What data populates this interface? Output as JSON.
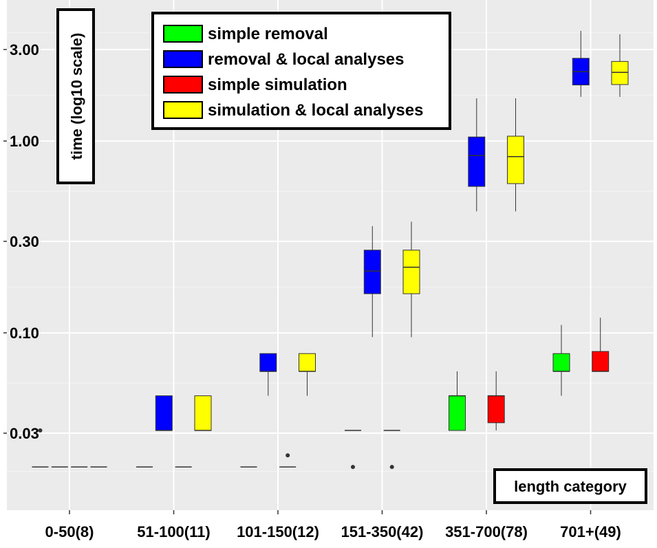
{
  "chart_data": {
    "type": "boxplot",
    "title": "",
    "xlabel": "length category",
    "ylabel": "time (log10 scale)",
    "y_scale": "log10",
    "ylim": [
      0.012,
      4.5
    ],
    "y_ticks": [
      0.03,
      0.1,
      0.3,
      1.0,
      3.0
    ],
    "y_tick_labels": [
      "0.03",
      "0.10",
      "0.30",
      "1.00",
      "3.00"
    ],
    "categories": [
      "0-50(8)",
      "51-100(11)",
      "101-150(12)",
      "151-350(42)",
      "351-700(78)",
      "701+(49)"
    ],
    "legend_position": "top-center",
    "series": [
      {
        "name": "simple removal",
        "color": "#00ff00",
        "boxes": [
          {
            "min": 0.02,
            "q1": 0.02,
            "median": 0.02,
            "q3": 0.02,
            "max": 0.02,
            "outliers": [
              0.031
            ]
          },
          {
            "min": 0.02,
            "q1": 0.02,
            "median": 0.02,
            "q3": 0.02,
            "max": 0.02,
            "outliers": []
          },
          {
            "min": 0.02,
            "q1": 0.02,
            "median": 0.02,
            "q3": 0.02,
            "max": 0.02,
            "outliers": []
          },
          {
            "min": 0.031,
            "q1": 0.031,
            "median": 0.031,
            "q3": 0.031,
            "max": 0.031,
            "outliers": [
              0.02
            ]
          },
          {
            "min": 0.031,
            "q1": 0.031,
            "median": 0.047,
            "q3": 0.047,
            "max": 0.063,
            "outliers": []
          },
          {
            "min": 0.047,
            "q1": 0.063,
            "median": 0.063,
            "q3": 0.078,
            "max": 0.11,
            "outliers": []
          }
        ]
      },
      {
        "name": "removal & local analyses",
        "color": "#0000ff",
        "boxes": [
          {
            "min": 0.02,
            "q1": 0.02,
            "median": 0.02,
            "q3": 0.02,
            "max": 0.02,
            "outliers": []
          },
          {
            "min": 0.031,
            "q1": 0.031,
            "median": 0.031,
            "q3": 0.047,
            "max": 0.047,
            "outliers": []
          },
          {
            "min": 0.047,
            "q1": 0.063,
            "median": 0.063,
            "q3": 0.078,
            "max": 0.078,
            "outliers": []
          },
          {
            "min": 0.095,
            "q1": 0.16,
            "median": 0.21,
            "q3": 0.27,
            "max": 0.36,
            "outliers": []
          },
          {
            "min": 0.43,
            "q1": 0.58,
            "median": 0.84,
            "q3": 1.05,
            "max": 1.67,
            "outliers": []
          },
          {
            "min": 1.7,
            "q1": 1.96,
            "median": 2.3,
            "q3": 2.7,
            "max": 3.75,
            "outliers": []
          }
        ]
      },
      {
        "name": "simple simulation",
        "color": "#ff0000",
        "boxes": [
          {
            "min": 0.02,
            "q1": 0.02,
            "median": 0.02,
            "q3": 0.02,
            "max": 0.02,
            "outliers": []
          },
          {
            "min": 0.02,
            "q1": 0.02,
            "median": 0.02,
            "q3": 0.02,
            "max": 0.02,
            "outliers": []
          },
          {
            "min": 0.02,
            "q1": 0.02,
            "median": 0.02,
            "q3": 0.02,
            "max": 0.02,
            "outliers": [
              0.023
            ]
          },
          {
            "min": 0.031,
            "q1": 0.031,
            "median": 0.031,
            "q3": 0.031,
            "max": 0.031,
            "outliers": [
              0.02
            ]
          },
          {
            "min": 0.031,
            "q1": 0.034,
            "median": 0.047,
            "q3": 0.047,
            "max": 0.063,
            "outliers": []
          },
          {
            "min": 0.063,
            "q1": 0.063,
            "median": 0.063,
            "q3": 0.08,
            "max": 0.12,
            "outliers": []
          }
        ]
      },
      {
        "name": "simulation & local analyses",
        "color": "#ffff00",
        "boxes": [
          {
            "min": 0.02,
            "q1": 0.02,
            "median": 0.02,
            "q3": 0.02,
            "max": 0.02,
            "outliers": []
          },
          {
            "min": 0.031,
            "q1": 0.031,
            "median": 0.031,
            "q3": 0.047,
            "max": 0.047,
            "outliers": []
          },
          {
            "min": 0.047,
            "q1": 0.063,
            "median": 0.063,
            "q3": 0.078,
            "max": 0.078,
            "outliers": []
          },
          {
            "min": 0.095,
            "q1": 0.16,
            "median": 0.22,
            "q3": 0.27,
            "max": 0.38,
            "outliers": []
          },
          {
            "min": 0.43,
            "q1": 0.6,
            "median": 0.83,
            "q3": 1.06,
            "max": 1.67,
            "outliers": []
          },
          {
            "min": 1.7,
            "q1": 1.97,
            "median": 2.28,
            "q3": 2.6,
            "max": 3.6,
            "outliers": []
          }
        ]
      }
    ]
  }
}
